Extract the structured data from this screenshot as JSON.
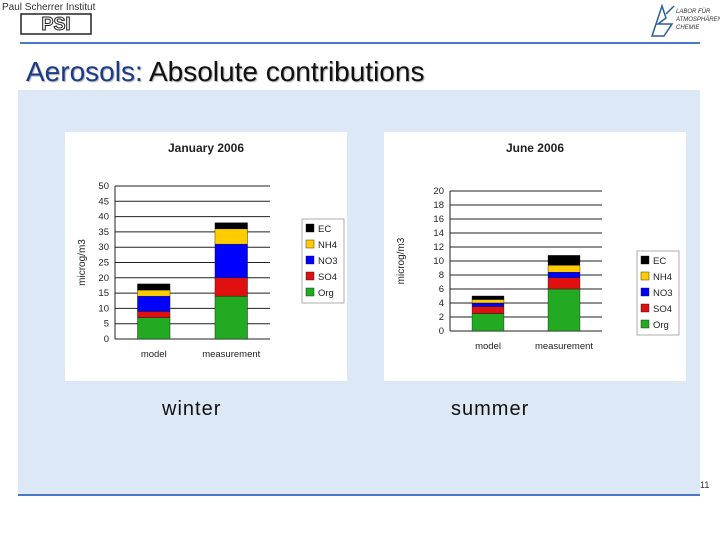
{
  "header": {
    "left_logo_name": "Paul Scherrer Institut",
    "left_logo_mark": "PSI",
    "right_logo_lines": [
      "LABOR FÜR",
      "ATMOSPHÄREN-",
      "CHEMIE"
    ]
  },
  "slide": {
    "title_part1": "Aerosols:",
    "title_part2": " Absolute contributions",
    "label_winter": "winter",
    "label_summer": "summer",
    "page_number": "11"
  },
  "colors": {
    "EC": "#000000",
    "NH4": "#ffcc00",
    "NO3": "#0000ff",
    "SO4": "#e01010",
    "Org": "#22aa22"
  },
  "chart_data": [
    {
      "type": "bar",
      "stacked": true,
      "title": "January 2006",
      "ylabel": "microg/m3",
      "categories": [
        "model",
        "measurement"
      ],
      "ylim": [
        0,
        50
      ],
      "yticks": [
        0,
        5,
        10,
        15,
        20,
        25,
        30,
        35,
        40,
        45,
        50
      ],
      "series": [
        {
          "name": "Org",
          "values": [
            7,
            14
          ]
        },
        {
          "name": "SO4",
          "values": [
            2,
            6
          ]
        },
        {
          "name": "NO3",
          "values": [
            5,
            11
          ]
        },
        {
          "name": "NH4",
          "values": [
            2,
            5
          ]
        },
        {
          "name": "EC",
          "values": [
            2,
            2
          ]
        }
      ],
      "legend": "right"
    },
    {
      "type": "bar",
      "stacked": true,
      "title": "June 2006",
      "ylabel": "microg/m3",
      "categories": [
        "model",
        "measurement"
      ],
      "ylim": [
        0,
        20
      ],
      "yticks": [
        0,
        2,
        4,
        6,
        8,
        10,
        12,
        14,
        16,
        18,
        20
      ],
      "series": [
        {
          "name": "Org",
          "values": [
            2.5,
            6
          ]
        },
        {
          "name": "SO4",
          "values": [
            1,
            1.6
          ]
        },
        {
          "name": "NO3",
          "values": [
            0.5,
            0.8
          ]
        },
        {
          "name": "NH4",
          "values": [
            0.5,
            1
          ]
        },
        {
          "name": "EC",
          "values": [
            0.5,
            1.4
          ]
        }
      ],
      "legend": "right"
    }
  ]
}
